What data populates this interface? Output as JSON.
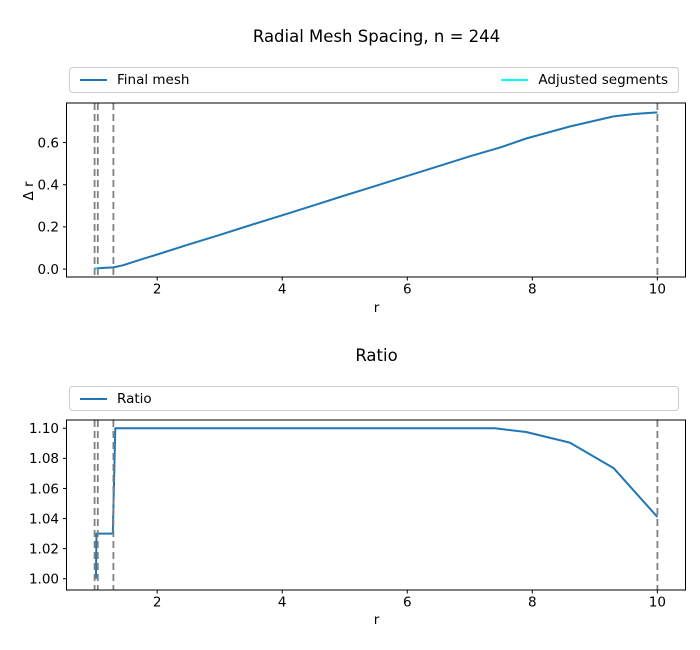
{
  "figure": {
    "background": "#ffffff"
  },
  "chart_data": [
    {
      "type": "line",
      "title": "Radial Mesh Spacing, n = 244",
      "xlabel": "r",
      "ylabel": "Δ r",
      "xlim": [
        0.55,
        10.45
      ],
      "ylim": [
        -0.0375,
        0.7875
      ],
      "xticks": [
        2,
        4,
        6,
        8,
        10
      ],
      "xtick_labels": [
        "2",
        "4",
        "6",
        "8",
        "10"
      ],
      "yticks": [
        0.0,
        0.2,
        0.4,
        0.6
      ],
      "ytick_labels": [
        "0.0",
        "0.2",
        "0.4",
        "0.6"
      ],
      "grid": false,
      "legend": {
        "position": "top-expand",
        "entries": [
          {
            "label": "Final mesh",
            "color": "#1f77b4"
          },
          {
            "label": "Adjusted segments",
            "color": "#00ffff"
          }
        ]
      },
      "vlines": {
        "x": [
          1.0,
          1.05,
          1.3,
          10.0
        ],
        "color": "#808080",
        "style": "dashed"
      },
      "series": [
        {
          "name": "Final mesh",
          "color": "#1f77b4",
          "points": [
            [
              1.0,
              0.0038
            ],
            [
              1.05,
              0.004
            ],
            [
              1.15,
              0.0055
            ],
            [
              1.3,
              0.008
            ],
            [
              1.45,
              0.018
            ],
            [
              1.6,
              0.032
            ],
            [
              1.8,
              0.051
            ],
            [
              2.0,
              0.069
            ],
            [
              2.5,
              0.116
            ],
            [
              3.0,
              0.162
            ],
            [
              3.5,
              0.209
            ],
            [
              4.0,
              0.255
            ],
            [
              4.5,
              0.302
            ],
            [
              5.0,
              0.349
            ],
            [
              5.5,
              0.395
            ],
            [
              6.0,
              0.442
            ],
            [
              6.5,
              0.488
            ],
            [
              7.0,
              0.535
            ],
            [
              7.5,
              0.578
            ],
            [
              7.9,
              0.619
            ],
            [
              8.6,
              0.676
            ],
            [
              9.3,
              0.724
            ],
            [
              9.65,
              0.736
            ],
            [
              10.0,
              0.743
            ]
          ]
        },
        {
          "name": "Adjusted segments",
          "color": "#00ffff",
          "points": [
            [
              1.0,
              0.0038
            ],
            [
              1.05,
              0.004
            ]
          ]
        }
      ]
    },
    {
      "type": "line",
      "title": "Ratio",
      "xlabel": "r",
      "ylabel": "",
      "xlim": [
        0.55,
        10.45
      ],
      "ylim": [
        0.9925,
        1.1055
      ],
      "xticks": [
        2,
        4,
        6,
        8,
        10
      ],
      "xtick_labels": [
        "2",
        "4",
        "6",
        "8",
        "10"
      ],
      "yticks": [
        1.0,
        1.02,
        1.04,
        1.06,
        1.08,
        1.1
      ],
      "ytick_labels": [
        "1.00",
        "1.02",
        "1.04",
        "1.06",
        "1.08",
        "1.10"
      ],
      "grid": false,
      "legend": {
        "position": "top-left",
        "entries": [
          {
            "label": "Ratio",
            "color": "#1f77b4"
          }
        ]
      },
      "vlines": {
        "x": [
          1.0,
          1.05,
          1.3,
          10.0
        ],
        "color": "#808080",
        "style": "dashed"
      },
      "series": [
        {
          "name": "Ratio",
          "color": "#1f77b4",
          "points": [
            [
              1.02,
              1.0
            ],
            [
              1.03,
              1.03
            ],
            [
              1.29,
              1.03
            ],
            [
              1.33,
              1.1
            ],
            [
              2.0,
              1.1
            ],
            [
              3.0,
              1.1
            ],
            [
              4.0,
              1.1
            ],
            [
              5.0,
              1.1
            ],
            [
              6.0,
              1.1
            ],
            [
              7.0,
              1.1
            ],
            [
              7.4,
              1.1
            ],
            [
              7.9,
              1.0975
            ],
            [
              8.6,
              1.0905
            ],
            [
              9.3,
              1.0735
            ],
            [
              10.0,
              1.041
            ]
          ]
        }
      ]
    }
  ]
}
